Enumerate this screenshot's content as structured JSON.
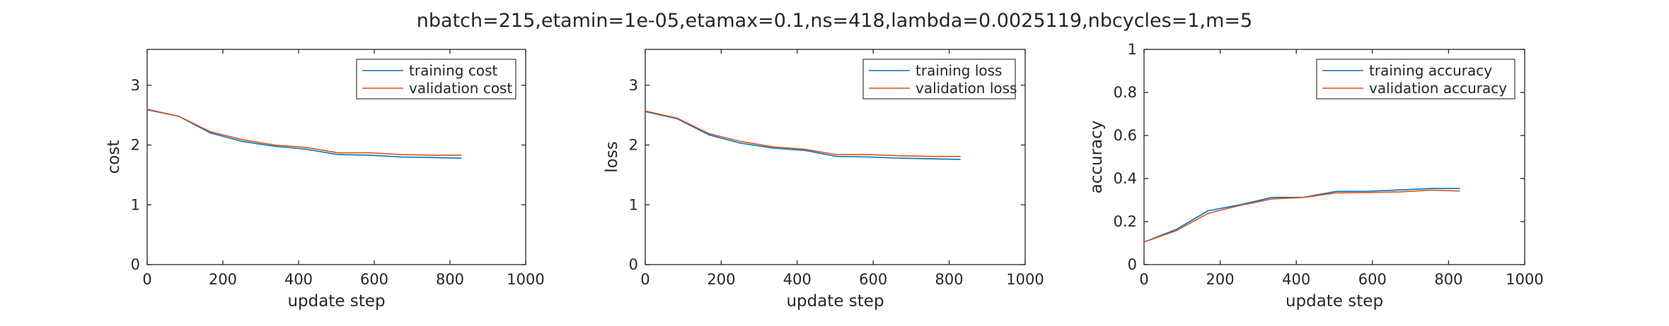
{
  "figure": {
    "suptitle": "nbatch=215,etamin=1e-05,etamax=0.1,ns=418,lambda=0.0025119,nbcycles=1,m=5"
  },
  "colors": {
    "training": "#0072BD",
    "validation": "#D95319",
    "axes": "#262626"
  },
  "chart_data": [
    {
      "type": "line",
      "title": "",
      "xlabel": "update step",
      "ylabel": "cost",
      "xlim": [
        0,
        1000
      ],
      "ylim": [
        0,
        3.6
      ],
      "xticks": [
        0,
        200,
        400,
        600,
        800,
        1000
      ],
      "yticks": [
        0,
        1,
        2,
        3
      ],
      "legend_position": "top-right",
      "grid": false,
      "x": [
        0,
        84,
        168,
        252,
        336,
        420,
        504,
        588,
        672,
        756,
        830
      ],
      "series": [
        {
          "name": "training cost",
          "color": "#0072BD",
          "values": [
            2.59,
            2.48,
            2.2,
            2.06,
            1.98,
            1.93,
            1.84,
            1.83,
            1.8,
            1.79,
            1.78
          ]
        },
        {
          "name": "validation cost",
          "color": "#D95319",
          "values": [
            2.6,
            2.48,
            2.22,
            2.09,
            2.0,
            1.96,
            1.87,
            1.87,
            1.84,
            1.83,
            1.83
          ]
        }
      ]
    },
    {
      "type": "line",
      "title": "",
      "xlabel": "update step",
      "ylabel": "loss",
      "xlim": [
        0,
        1000
      ],
      "ylim": [
        0,
        3.6
      ],
      "xticks": [
        0,
        200,
        400,
        600,
        800,
        1000
      ],
      "yticks": [
        0,
        1,
        2,
        3
      ],
      "legend_position": "top-right",
      "grid": false,
      "x": [
        0,
        84,
        168,
        252,
        336,
        420,
        504,
        588,
        672,
        756,
        830
      ],
      "series": [
        {
          "name": "training loss",
          "color": "#0072BD",
          "values": [
            2.56,
            2.44,
            2.17,
            2.03,
            1.95,
            1.91,
            1.81,
            1.8,
            1.78,
            1.77,
            1.76
          ]
        },
        {
          "name": "validation loss",
          "color": "#D95319",
          "values": [
            2.57,
            2.45,
            2.19,
            2.06,
            1.97,
            1.93,
            1.84,
            1.84,
            1.82,
            1.81,
            1.81
          ]
        }
      ]
    },
    {
      "type": "line",
      "title": "",
      "xlabel": "update step",
      "ylabel": "accuracy",
      "xlim": [
        0,
        1000
      ],
      "ylim": [
        0,
        1
      ],
      "xticks": [
        0,
        200,
        400,
        600,
        800,
        1000
      ],
      "yticks": [
        0,
        0.2,
        0.4,
        0.6,
        0.8,
        1
      ],
      "legend_position": "top-right",
      "grid": false,
      "x": [
        0,
        84,
        168,
        252,
        336,
        420,
        504,
        588,
        672,
        756,
        830
      ],
      "series": [
        {
          "name": "training accuracy",
          "color": "#0072BD",
          "values": [
            0.105,
            0.163,
            0.25,
            0.278,
            0.312,
            0.313,
            0.34,
            0.341,
            0.347,
            0.354,
            0.354
          ]
        },
        {
          "name": "validation accuracy",
          "color": "#D95319",
          "values": [
            0.105,
            0.157,
            0.238,
            0.275,
            0.305,
            0.312,
            0.333,
            0.335,
            0.338,
            0.346,
            0.342
          ]
        }
      ]
    }
  ]
}
